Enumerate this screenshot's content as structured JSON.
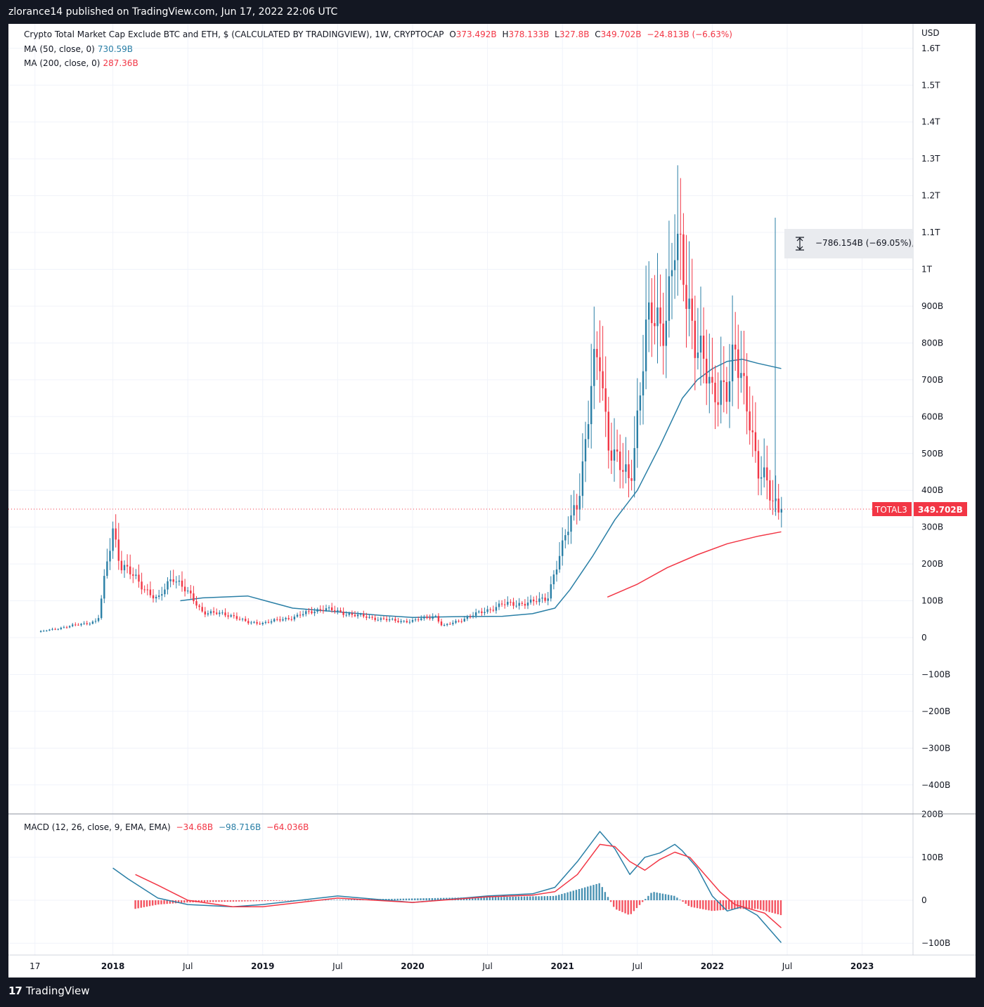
{
  "header": {
    "publish_text": "zlorance14 published on TradingView.com, Jun 17, 2022 22:06 UTC"
  },
  "footer": {
    "logo_text": "TradingView",
    "logo_mark": "17"
  },
  "colors": {
    "up": "#2a7fa6",
    "down": "#f23645",
    "ma50": "#2a7fa6",
    "ma200": "#f23645",
    "macd": "#2a7fa6",
    "signal": "#f23645"
  },
  "legend": {
    "title": "Crypto Total Market Cap Exclude BTC and ETH, $ (CALCULATED BY TRADINGVIEW), 1W, CRYPTOCAP",
    "o_label": "O",
    "o_value": "373.492B",
    "h_label": "H",
    "h_value": "378.133B",
    "l_label": "L",
    "l_value": "327.8B",
    "c_label": "C",
    "c_value": "349.702B",
    "change": "−24.813B (−6.63%)",
    "ma50_label": "MA (50, close, 0)",
    "ma50_value": "730.59B",
    "ma200_label": "MA (200, close, 0)",
    "ma200_value": "287.36B",
    "macd_label": "MACD (12, 26, close, 9, EMA, EMA)",
    "macd_hist": "−34.68B",
    "macd_line": "−98.716B",
    "macd_signal": "−64.036B"
  },
  "measure": {
    "label": "−786.154B (−69.05%),",
    "icon": "measure-arrows-icon"
  },
  "price_tag": {
    "symbol": "TOTAL3",
    "value": "349.702B"
  },
  "chart_data": [
    {
      "type": "candlestick",
      "title": "Crypto Total Market Cap Exclude BTC and ETH",
      "currency": "USD",
      "y_ticks": [
        "1.6T",
        "1.5T",
        "1.4T",
        "1.3T",
        "1.2T",
        "1.1T",
        "1T",
        "900B",
        "800B",
        "700B",
        "600B",
        "500B",
        "400B",
        "300B",
        "200B",
        "100B",
        "0",
        "−100B",
        "−200B",
        "−300B",
        "−400B"
      ],
      "ylim": [
        -480,
        1680
      ],
      "x_ticks": [
        "17",
        "2018",
        "Jul",
        "2019",
        "Jul",
        "2020",
        "Jul",
        "2021",
        "Jul",
        "2022",
        "Jul",
        "2023"
      ],
      "last_close": 349.7,
      "series": [
        {
          "name": "TOTAL3 (weekly close, B)",
          "x": [
            2017.5,
            2017.7,
            2017.9,
            2018.0,
            2018.05,
            2018.15,
            2018.3,
            2018.4,
            2018.6,
            2018.8,
            2018.9,
            2019.0,
            2019.2,
            2019.4,
            2019.5,
            2019.7,
            2019.9,
            2020.0,
            2020.15,
            2020.2,
            2020.4,
            2020.6,
            2020.8,
            2020.9,
            2020.95,
            2021.0,
            2021.05,
            2021.1,
            2021.15,
            2021.2,
            2021.25,
            2021.3,
            2021.35,
            2021.4,
            2021.45,
            2021.5,
            2021.55,
            2021.6,
            2021.65,
            2021.7,
            2021.75,
            2021.8,
            2021.85,
            2021.9,
            2021.95,
            2022.0,
            2022.05,
            2022.1,
            2022.15,
            2022.2,
            2022.25,
            2022.3,
            2022.35,
            2022.4,
            2022.46
          ],
          "values": [
            15,
            30,
            45,
            300,
            200,
            160,
            100,
            170,
            70,
            60,
            40,
            40,
            55,
            80,
            70,
            55,
            45,
            45,
            60,
            30,
            60,
            90,
            95,
            110,
            180,
            240,
            320,
            380,
            500,
            700,
            780,
            550,
            480,
            450,
            430,
            600,
            800,
            870,
            860,
            900,
            1050,
            1000,
            900,
            800,
            720,
            650,
            700,
            680,
            750,
            700,
            620,
            450,
            420,
            380,
            349.7
          ]
        },
        {
          "name": "MA (50, close, 0)",
          "x": [
            2018.45,
            2018.6,
            2018.9,
            2019.2,
            2019.5,
            2019.8,
            2020.0,
            2020.3,
            2020.6,
            2020.8,
            2020.95,
            2021.05,
            2021.2,
            2021.35,
            2021.5,
            2021.65,
            2021.8,
            2021.9,
            2022.0,
            2022.1,
            2022.2,
            2022.3,
            2022.46
          ],
          "values": [
            100,
            108,
            113,
            80,
            70,
            60,
            55,
            57,
            58,
            65,
            80,
            130,
            220,
            320,
            400,
            520,
            650,
            700,
            730,
            750,
            756,
            745,
            730.59
          ]
        },
        {
          "name": "MA (200, close, 0)",
          "x": [
            2021.3,
            2021.5,
            2021.7,
            2021.9,
            2022.1,
            2022.3,
            2022.46
          ],
          "values": [
            110,
            145,
            190,
            225,
            255,
            275,
            287.36
          ]
        }
      ]
    },
    {
      "type": "line",
      "title": "MACD (12, 26, close, 9, EMA, EMA)",
      "y_ticks": [
        "200B",
        "100B",
        "0",
        "−100B"
      ],
      "ylim": [
        -110,
        200
      ],
      "series": [
        {
          "name": "MACD",
          "x": [
            2018.0,
            2018.1,
            2018.3,
            2018.5,
            2018.8,
            2019.0,
            2019.5,
            2020.0,
            2020.5,
            2020.8,
            2020.95,
            2021.1,
            2021.25,
            2021.35,
            2021.45,
            2021.55,
            2021.65,
            2021.75,
            2021.8,
            2021.9,
            2022.0,
            2022.1,
            2022.2,
            2022.3,
            2022.46
          ],
          "values": [
            75,
            50,
            5,
            -10,
            -15,
            -10,
            10,
            -5,
            10,
            15,
            30,
            90,
            160,
            120,
            60,
            100,
            110,
            130,
            115,
            75,
            10,
            -25,
            -15,
            -35,
            -98.716
          ]
        },
        {
          "name": "Signal",
          "x": [
            2018.15,
            2018.3,
            2018.5,
            2018.8,
            2019.0,
            2019.5,
            2020.0,
            2020.5,
            2020.8,
            2020.95,
            2021.1,
            2021.25,
            2021.35,
            2021.45,
            2021.55,
            2021.65,
            2021.75,
            2021.85,
            2021.95,
            2022.05,
            2022.15,
            2022.25,
            2022.35,
            2022.46
          ],
          "values": [
            60,
            35,
            0,
            -15,
            -15,
            5,
            -5,
            8,
            12,
            20,
            60,
            130,
            125,
            90,
            70,
            95,
            112,
            100,
            60,
            20,
            -10,
            -20,
            -30,
            -64.036
          ]
        },
        {
          "name": "Histogram",
          "x": [
            2018.15,
            2018.3,
            2018.5,
            2020.95,
            2021.1,
            2021.25,
            2021.35,
            2021.45,
            2021.6,
            2021.75,
            2021.85,
            2022.0,
            2022.15,
            2022.3,
            2022.46
          ],
          "values": [
            -20,
            -10,
            -5,
            10,
            25,
            40,
            -20,
            -35,
            20,
            10,
            -15,
            -25,
            -20,
            -20,
            -34.68
          ]
        }
      ]
    }
  ]
}
